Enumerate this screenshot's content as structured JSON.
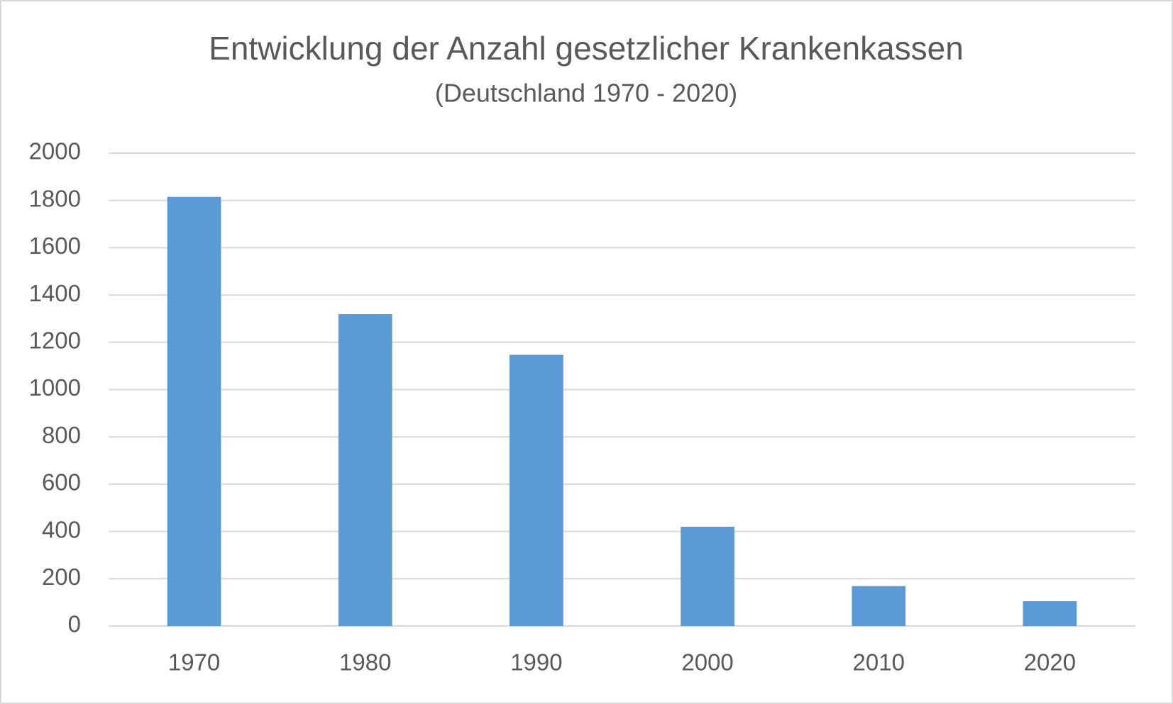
{
  "chart_data": {
    "type": "bar",
    "title": "Entwicklung der Anzahl gesetzlicher Krankenkassen",
    "subtitle": "(Deutschland 1970 - 2020)",
    "categories": [
      "1970",
      "1980",
      "1990",
      "2000",
      "2010",
      "2020"
    ],
    "values": [
      1815,
      1319,
      1147,
      420,
      169,
      105
    ],
    "color": "#5b9bd5",
    "ylim": [
      0,
      2000
    ],
    "yticks": [
      0,
      200,
      400,
      600,
      800,
      1000,
      1200,
      1400,
      1600,
      1800,
      2000
    ],
    "grid": true
  }
}
